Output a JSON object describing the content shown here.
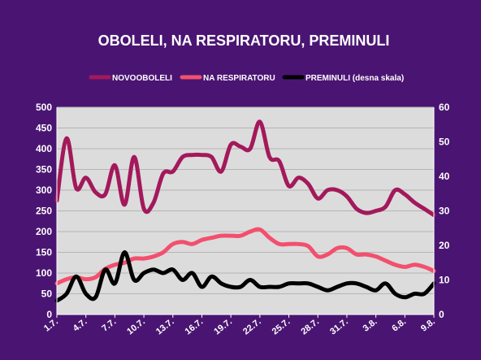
{
  "chart_data": {
    "type": "line",
    "title": "OBOLELI, NA RESPIRATORU, PREMINULI",
    "x": [
      "1.7.",
      "2.7.",
      "3.7.",
      "4.7.",
      "5.7.",
      "6.7.",
      "7.7.",
      "8.7.",
      "9.7.",
      "10.7.",
      "11.7.",
      "12.7.",
      "13.7.",
      "14.7.",
      "15.7.",
      "16.7.",
      "17.7.",
      "18.7.",
      "19.7.",
      "20.7.",
      "21.7.",
      "22.7.",
      "23.7.",
      "24.7.",
      "25.7.",
      "26.7.",
      "27.7.",
      "28.7.",
      "29.7.",
      "30.7.",
      "31.7.",
      "1.8.",
      "2.8.",
      "3.8.",
      "4.8.",
      "5.8.",
      "6.8.",
      "7.8.",
      "8.8.",
      "9.8."
    ],
    "x_tick_labels": [
      "1.7.",
      "4.7.",
      "7.7.",
      "10.7.",
      "13.7.",
      "16.7.",
      "19.7.",
      "22.7.",
      "25.7.",
      "28.7.",
      "31.7.",
      "3.8.",
      "6.8.",
      "9.8."
    ],
    "y_left": {
      "ticks": [
        "0",
        "50",
        "100",
        "150",
        "200",
        "250",
        "300",
        "350",
        "400",
        "450",
        "500"
      ],
      "ylim": [
        0,
        500
      ]
    },
    "y_right": {
      "ticks": [
        "0",
        "10",
        "20",
        "30",
        "40",
        "50",
        "60"
      ],
      "ylim": [
        0,
        60
      ]
    },
    "grid": true,
    "legend_position": "top",
    "series": [
      {
        "name": "NOVOOBOLELI",
        "axis": "left",
        "color": "#a3195b",
        "values": [
          275,
          425,
          305,
          330,
          295,
          290,
          360,
          265,
          380,
          255,
          270,
          340,
          345,
          380,
          385,
          385,
          380,
          345,
          410,
          405,
          400,
          465,
          380,
          370,
          310,
          330,
          315,
          280,
          300,
          300,
          285,
          255,
          245,
          250,
          260,
          300,
          290,
          270,
          255,
          240
        ]
      },
      {
        "name": "NA RESPIRATORU",
        "axis": "left",
        "color": "#f2506e",
        "values": [
          75,
          85,
          90,
          85,
          90,
          110,
          120,
          125,
          135,
          135,
          140,
          150,
          170,
          175,
          170,
          180,
          185,
          190,
          190,
          190,
          200,
          205,
          185,
          170,
          170,
          170,
          165,
          140,
          145,
          160,
          160,
          145,
          145,
          140,
          130,
          120,
          115,
          120,
          115,
          105
        ]
      },
      {
        "name": "PREMINULI (desna skala)",
        "axis": "right",
        "color": "#000000",
        "values": [
          4,
          6,
          11,
          6,
          5,
          13,
          9,
          18,
          10,
          12,
          13,
          12,
          13,
          10,
          12,
          8,
          11,
          9,
          8,
          8,
          10,
          8,
          8,
          8,
          9,
          9,
          9,
          8,
          7,
          8,
          9,
          9,
          8,
          7,
          9,
          6,
          5,
          6,
          6,
          9
        ]
      }
    ]
  }
}
